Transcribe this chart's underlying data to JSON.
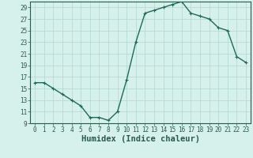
{
  "x": [
    0,
    1,
    2,
    3,
    4,
    5,
    6,
    7,
    8,
    9,
    10,
    11,
    12,
    13,
    14,
    15,
    16,
    17,
    18,
    19,
    20,
    21,
    22,
    23
  ],
  "y": [
    16,
    16,
    15,
    14,
    13,
    12,
    10,
    10,
    9.5,
    11,
    16.5,
    23,
    28,
    28.5,
    29,
    29.5,
    30,
    28,
    27.5,
    27,
    25.5,
    25,
    20.5,
    19.5
  ],
  "xlabel": "Humidex (Indice chaleur)",
  "ylim": [
    9,
    30
  ],
  "xlim": [
    -0.5,
    23.5
  ],
  "yticks": [
    9,
    11,
    13,
    15,
    17,
    19,
    21,
    23,
    25,
    27,
    29
  ],
  "xticks": [
    0,
    1,
    2,
    3,
    4,
    5,
    6,
    7,
    8,
    9,
    10,
    11,
    12,
    13,
    14,
    15,
    16,
    17,
    18,
    19,
    20,
    21,
    22,
    23
  ],
  "line_color": "#1a6b5a",
  "marker": "+",
  "bg_color": "#d6f0ec",
  "grid_color": "#b0d8d0",
  "axis_color": "#2a5a4a",
  "tick_fontsize": 5.5,
  "xlabel_fontsize": 7.5,
  "linewidth": 1.0,
  "markersize": 3.5
}
